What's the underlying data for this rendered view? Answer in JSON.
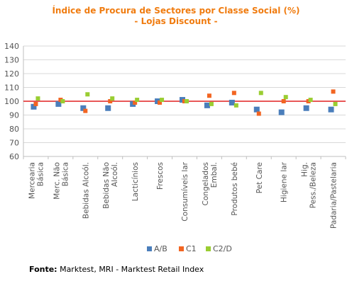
{
  "chart_data": {
    "type": "scatter",
    "title": "Índice de Procura de Sectores por Classe Social (%)",
    "subtitle": "- Lojas Discount -",
    "categories": [
      "Mercearia Básica",
      "Merc. Não Básica",
      "Bebidas Alcoól.",
      "Bebidas Não Alcoól.",
      "Lacticínios",
      "Frescos",
      "Consumíveis lar",
      "Congelados Embal.",
      "Produtos bebé",
      "Pet Care",
      "Higiene lar",
      "Hig. Pess./Beleza",
      "Padaria/Pastelaria"
    ],
    "series": [
      {
        "name": "A/B",
        "color": "#4a7ebb",
        "values": [
          96,
          98,
          95,
          95,
          98,
          100,
          101,
          97,
          99,
          94,
          92,
          95,
          94
        ]
      },
      {
        "name": "C1",
        "color": "#f26522",
        "values": [
          98,
          101,
          93,
          100,
          99,
          99,
          100,
          104,
          106,
          91,
          100,
          100,
          107
        ]
      },
      {
        "name": "C2/D",
        "color": "#9acd32",
        "values": [
          102,
          100,
          105,
          102,
          101,
          101,
          100,
          98,
          97,
          106,
          103,
          101,
          98
        ]
      }
    ],
    "ylim": [
      60,
      140
    ],
    "yticks": [
      60,
      70,
      80,
      90,
      100,
      110,
      120,
      130,
      140
    ],
    "reference_line": {
      "value": 100,
      "color": "#e02020"
    },
    "grid": true,
    "legend": "bottom"
  },
  "source": {
    "label": "Fonte:",
    "text": " Marktest, MRI - Marktest Retail Index"
  }
}
